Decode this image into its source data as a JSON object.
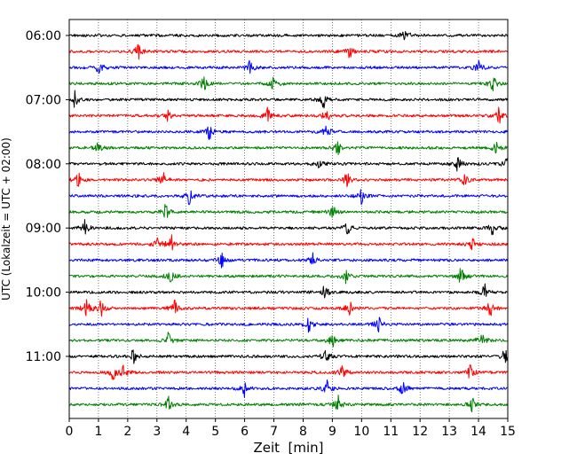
{
  "chart_data": {
    "type": "line",
    "title": "",
    "xlabel": "Zeit  [min]",
    "ylabel": "UTC (Lokalzeit = UTC + 02:00)",
    "xlim": [
      0,
      15
    ],
    "x_ticks": [
      "0",
      "1",
      "2",
      "3",
      "4",
      "5",
      "6",
      "7",
      "8",
      "9",
      "10",
      "11",
      "12",
      "13",
      "14",
      "15"
    ],
    "grid": "vertical dotted",
    "trace_colors": [
      "#000000",
      "#ff0000",
      "#0000ff",
      "#008000"
    ],
    "row_labels": [
      {
        "row": 0,
        "label": "06:00"
      },
      {
        "row": 4,
        "label": "07:00"
      },
      {
        "row": 8,
        "label": "08:00"
      },
      {
        "row": 12,
        "label": "09:00"
      },
      {
        "row": 16,
        "label": "10:00"
      },
      {
        "row": 20,
        "label": "11:00"
      }
    ],
    "series": [
      {
        "start": "06:00",
        "color": "#000000",
        "spikes": [
          11.5
        ]
      },
      {
        "start": "06:15",
        "color": "#ff0000",
        "spikes": [
          2.35,
          9.6
        ]
      },
      {
        "start": "06:30",
        "color": "#0000ff",
        "spikes": [
          1.0,
          6.2,
          14.0
        ]
      },
      {
        "start": "06:45",
        "color": "#008000",
        "spikes": [
          4.6,
          7.0,
          14.5
        ]
      },
      {
        "start": "07:00",
        "color": "#000000",
        "spikes": [
          0.2,
          8.7
        ]
      },
      {
        "start": "07:15",
        "color": "#ff0000",
        "spikes": [
          3.4,
          6.8,
          8.8,
          14.7
        ]
      },
      {
        "start": "07:30",
        "color": "#0000ff",
        "spikes": [
          4.8,
          8.8
        ]
      },
      {
        "start": "07:45",
        "color": "#008000",
        "spikes": [
          1.0,
          9.2,
          14.6
        ]
      },
      {
        "start": "08:00",
        "color": "#000000",
        "spikes": [
          8.55,
          13.3,
          15.0
        ]
      },
      {
        "start": "08:15",
        "color": "#ff0000",
        "spikes": [
          0.3,
          3.2,
          9.5,
          13.5
        ]
      },
      {
        "start": "08:30",
        "color": "#0000ff",
        "spikes": [
          4.1,
          10.0
        ]
      },
      {
        "start": "08:45",
        "color": "#008000",
        "spikes": [
          3.3,
          9.0
        ]
      },
      {
        "start": "09:00",
        "color": "#000000",
        "spikes": [
          0.55,
          9.5,
          14.5
        ]
      },
      {
        "start": "09:15",
        "color": "#ff0000",
        "spikes": [
          3.0,
          3.5,
          13.8
        ]
      },
      {
        "start": "09:30",
        "color": "#0000ff",
        "spikes": [
          5.2,
          8.3
        ]
      },
      {
        "start": "09:45",
        "color": "#008000",
        "spikes": [
          3.45,
          9.45,
          13.4
        ]
      },
      {
        "start": "10:00",
        "color": "#000000",
        "spikes": [
          8.75,
          14.2
        ]
      },
      {
        "start": "10:15",
        "color": "#ff0000",
        "spikes": [
          0.6,
          1.1,
          3.6,
          9.6,
          14.4
        ]
      },
      {
        "start": "10:30",
        "color": "#0000ff",
        "spikes": [
          8.2,
          10.6
        ]
      },
      {
        "start": "10:45",
        "color": "#008000",
        "spikes": [
          3.4,
          9.0,
          14.1
        ]
      },
      {
        "start": "11:00",
        "color": "#000000",
        "spikes": [
          2.2,
          8.8,
          14.9
        ]
      },
      {
        "start": "11:15",
        "color": "#ff0000",
        "spikes": [
          1.5,
          1.85,
          9.35,
          13.7
        ]
      },
      {
        "start": "11:30",
        "color": "#0000ff",
        "spikes": [
          6.0,
          8.8,
          11.4
        ]
      },
      {
        "start": "11:45",
        "color": "#008000",
        "spikes": [
          3.4,
          9.2,
          13.8
        ]
      }
    ]
  }
}
